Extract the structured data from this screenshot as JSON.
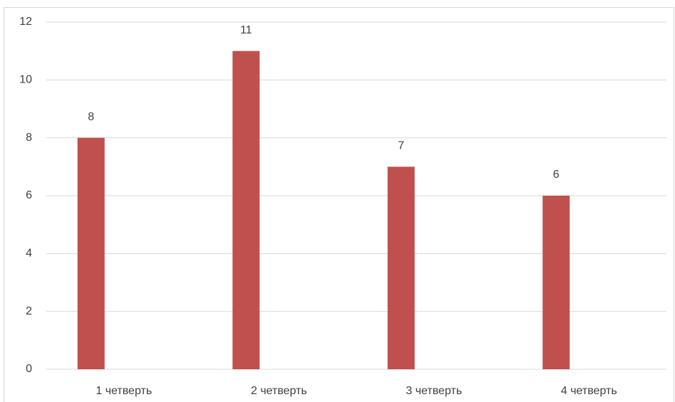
{
  "chart_data": {
    "type": "bar",
    "categories": [
      "1 четверть",
      "2 четверть",
      "3 четверть",
      "4 четверть"
    ],
    "values": [
      8,
      11,
      7,
      6
    ],
    "color": "#c0504d",
    "ylim": [
      0,
      12
    ],
    "yticks": [
      0,
      2,
      4,
      6,
      8,
      10,
      12
    ],
    "grid": true
  }
}
